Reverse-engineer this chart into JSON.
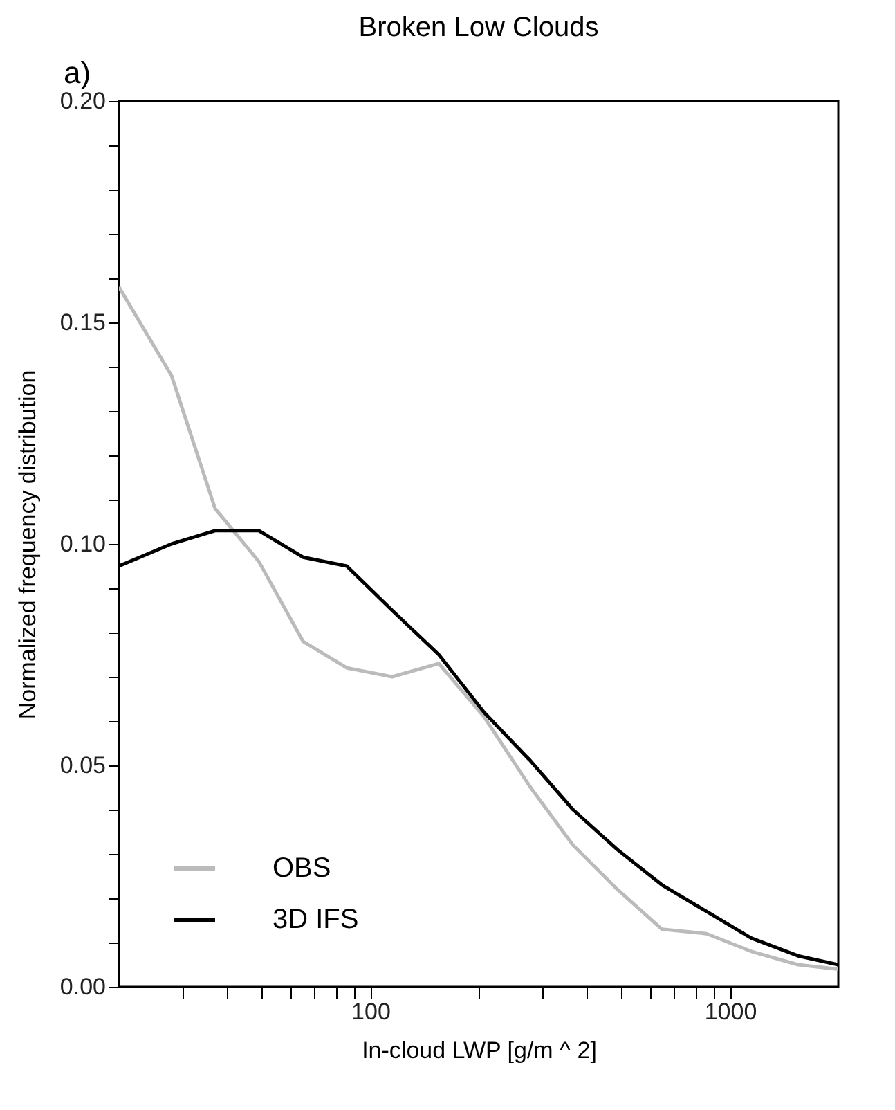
{
  "chart_data": {
    "type": "line",
    "title": "Broken Low Clouds",
    "annotations": [
      "a)"
    ],
    "xlabel": "In-cloud LWP [g/m ^ 2]",
    "ylabel": "Normalized frequency distribution",
    "log": "x",
    "xlim": [
      20,
      2000
    ],
    "ylim": [
      0,
      0.2
    ],
    "xticks": [
      {
        "value": 30,
        "label": null
      },
      {
        "value": 40,
        "label": null
      },
      {
        "value": 50,
        "label": null
      },
      {
        "value": 60,
        "label": null
      },
      {
        "value": 70,
        "label": null
      },
      {
        "value": 80,
        "label": null
      },
      {
        "value": 90,
        "label": null
      },
      100,
      {
        "value": 200,
        "label": null
      },
      {
        "value": 300,
        "label": null
      },
      {
        "value": 400,
        "label": null
      },
      {
        "value": 500,
        "label": null
      },
      {
        "value": 600,
        "label": null
      },
      {
        "value": 700,
        "label": null
      },
      {
        "value": 800,
        "label": null
      },
      {
        "value": 900,
        "label": null
      },
      1000
    ],
    "yticks": [
      {
        "value": 0,
        "label": "0.00"
      },
      {
        "value": 0.01,
        "label": null
      },
      {
        "value": 0.02,
        "label": null
      },
      {
        "value": 0.03,
        "label": null
      },
      {
        "value": 0.04,
        "label": null
      },
      {
        "value": 0.05,
        "label": "0.05"
      },
      {
        "value": 0.06,
        "label": null
      },
      {
        "value": 0.07,
        "label": null
      },
      {
        "value": 0.08,
        "label": null
      },
      {
        "value": 0.09,
        "label": null
      },
      {
        "value": 0.1,
        "label": "0.10"
      },
      {
        "value": 0.11,
        "label": null
      },
      {
        "value": 0.12,
        "label": null
      },
      {
        "value": 0.13,
        "label": null
      },
      {
        "value": 0.14,
        "label": null
      },
      {
        "value": 0.15,
        "label": "0.15"
      },
      {
        "value": 0.16,
        "label": null
      },
      {
        "value": 0.17,
        "label": null
      },
      {
        "value": 0.18,
        "label": null
      },
      {
        "value": 0.19,
        "label": null
      },
      {
        "value": 0.2,
        "label": "0.20"
      }
    ],
    "grid": false,
    "legend": "bottom left",
    "marker": "none",
    "line_style": "solid",
    "x": [
      20,
      28,
      37,
      49,
      65,
      86,
      115,
      155,
      207,
      279,
      366,
      486,
      647,
      861,
      1146,
      1545,
      2000
    ],
    "series": [
      {
        "name": "OBS",
        "color": "#bbbbbb",
        "values": [
          0.158,
          0.138,
          0.108,
          0.096,
          0.078,
          0.072,
          0.07,
          0.073,
          0.061,
          0.045,
          0.032,
          0.022,
          0.013,
          0.012,
          0.008,
          0.005,
          0.004
        ]
      },
      {
        "name": "3D IFS",
        "color": "#000000",
        "values": [
          0.095,
          0.1,
          0.103,
          0.103,
          0.097,
          0.095,
          0.085,
          0.075,
          0.062,
          0.051,
          0.04,
          0.031,
          0.023,
          0.017,
          0.011,
          0.007,
          0.005
        ]
      }
    ]
  }
}
